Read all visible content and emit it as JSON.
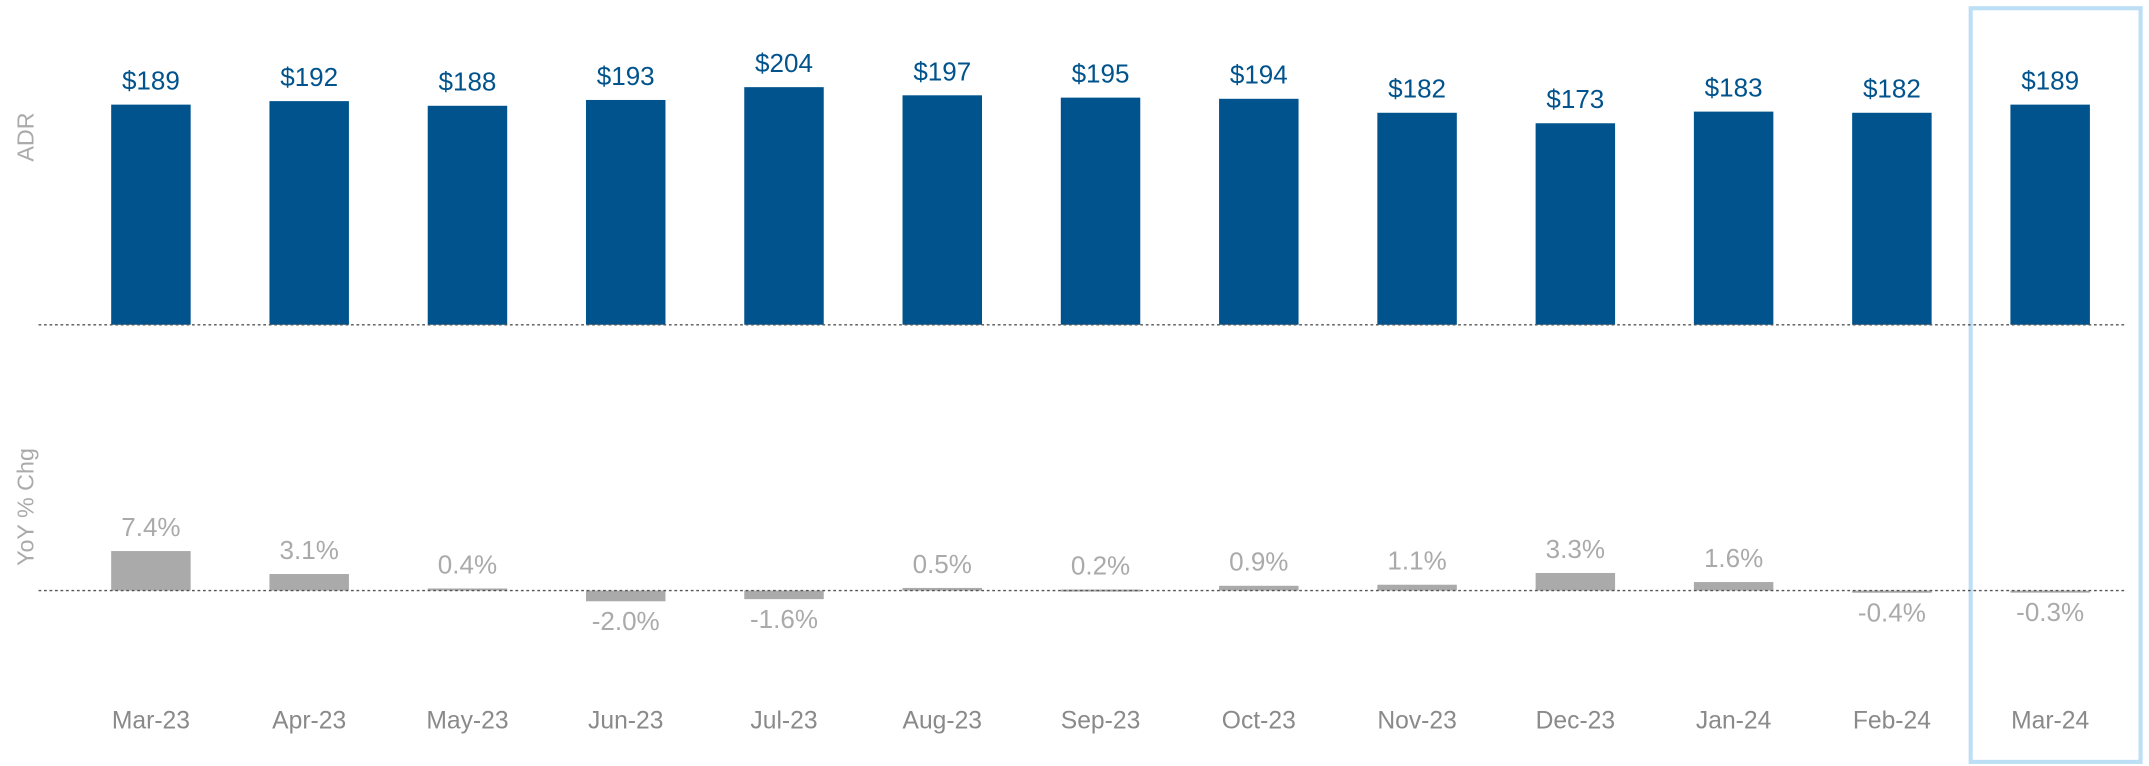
{
  "chart_data": [
    {
      "type": "bar",
      "y_label": "ADR",
      "categories": [
        "Mar-23",
        "Apr-23",
        "May-23",
        "Jun-23",
        "Jul-23",
        "Aug-23",
        "Sep-23",
        "Oct-23",
        "Nov-23",
        "Dec-23",
        "Jan-24",
        "Feb-24",
        "Mar-24"
      ],
      "values": [
        189,
        192,
        188,
        193,
        204,
        197,
        195,
        194,
        182,
        173,
        183,
        182,
        189
      ],
      "value_labels": [
        "$189",
        "$192",
        "$188",
        "$193",
        "$204",
        "$197",
        "$195",
        "$194",
        "$182",
        "$173",
        "$183",
        "$182",
        "$189"
      ],
      "color": "#00538c",
      "ylim": [
        0,
        280
      ],
      "highlight": 12
    },
    {
      "type": "bar",
      "y_label": "YoY % Chg",
      "values": [
        7.4,
        3.1,
        0.4,
        -2.0,
        -1.6,
        0.5,
        0.2,
        0.9,
        1.1,
        3.3,
        1.6,
        -0.4,
        -0.3
      ],
      "value_labels": [
        "7.4%",
        "3.1%",
        "0.4%",
        "-2.0%",
        "-1.6%",
        "0.5%",
        "0.2%",
        "0.9%",
        "1.1%",
        "3.3%",
        "1.6%",
        "-0.4%",
        "-0.3%"
      ],
      "color": "#aaaaaa",
      "ylim": [
        -10,
        15
      ]
    }
  ]
}
